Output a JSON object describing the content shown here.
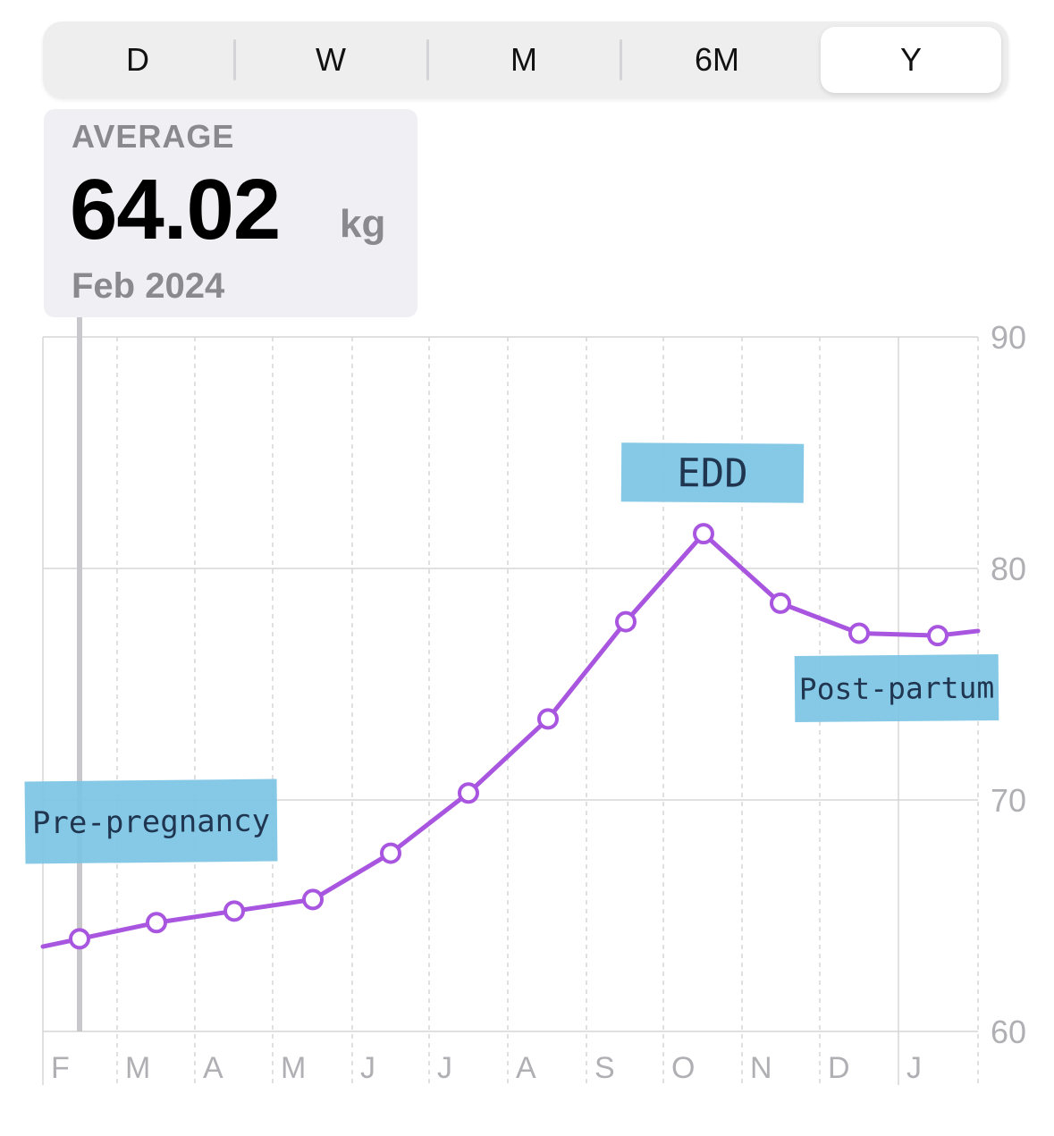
{
  "range_picker": {
    "options": [
      "D",
      "W",
      "M",
      "6M",
      "Y"
    ],
    "selected": "Y"
  },
  "summary": {
    "label": "AVERAGE",
    "value": "64.02",
    "unit": "kg",
    "period": "Feb 2024"
  },
  "colors": {
    "line": "#a855e0",
    "tape": "#7cc4e4",
    "tape_text": "#1f3550",
    "grid": "#d6d6d6",
    "axis_text": "#b0b0b4",
    "selection": "#c8c8cc"
  },
  "chart_data": {
    "type": "line",
    "title": "",
    "xlabel": "",
    "ylabel": "",
    "x_tick_labels": [
      "F",
      "M",
      "A",
      "M",
      "J",
      "J",
      "A",
      "S",
      "O",
      "N",
      "D",
      "J"
    ],
    "y_ticks": [
      60,
      70,
      80,
      90
    ],
    "ylim": [
      60,
      90
    ],
    "grid": true,
    "series": [
      {
        "name": "",
        "points": [
          {
            "x": "Feb",
            "y": 64.0
          },
          {
            "x": "Mar",
            "y": 64.7
          },
          {
            "x": "Apr",
            "y": 65.2
          },
          {
            "x": "May",
            "y": 65.7
          },
          {
            "x": "Jun",
            "y": 67.7
          },
          {
            "x": "Jul",
            "y": 70.3
          },
          {
            "x": "Aug",
            "y": 73.5
          },
          {
            "x": "Sep",
            "y": 77.7
          },
          {
            "x": "Oct",
            "y": 81.5
          },
          {
            "x": "Nov",
            "y": 78.5
          },
          {
            "x": "Dec",
            "y": 77.2
          },
          {
            "x": "Jan",
            "y": 77.1
          }
        ]
      }
    ],
    "selected_point": "Feb",
    "annotations": [
      {
        "text": "Pre-pregnancy",
        "near": "Feb"
      },
      {
        "text": "EDD",
        "near": "Oct"
      },
      {
        "text": "Post-partum",
        "near": "Dec"
      }
    ]
  }
}
